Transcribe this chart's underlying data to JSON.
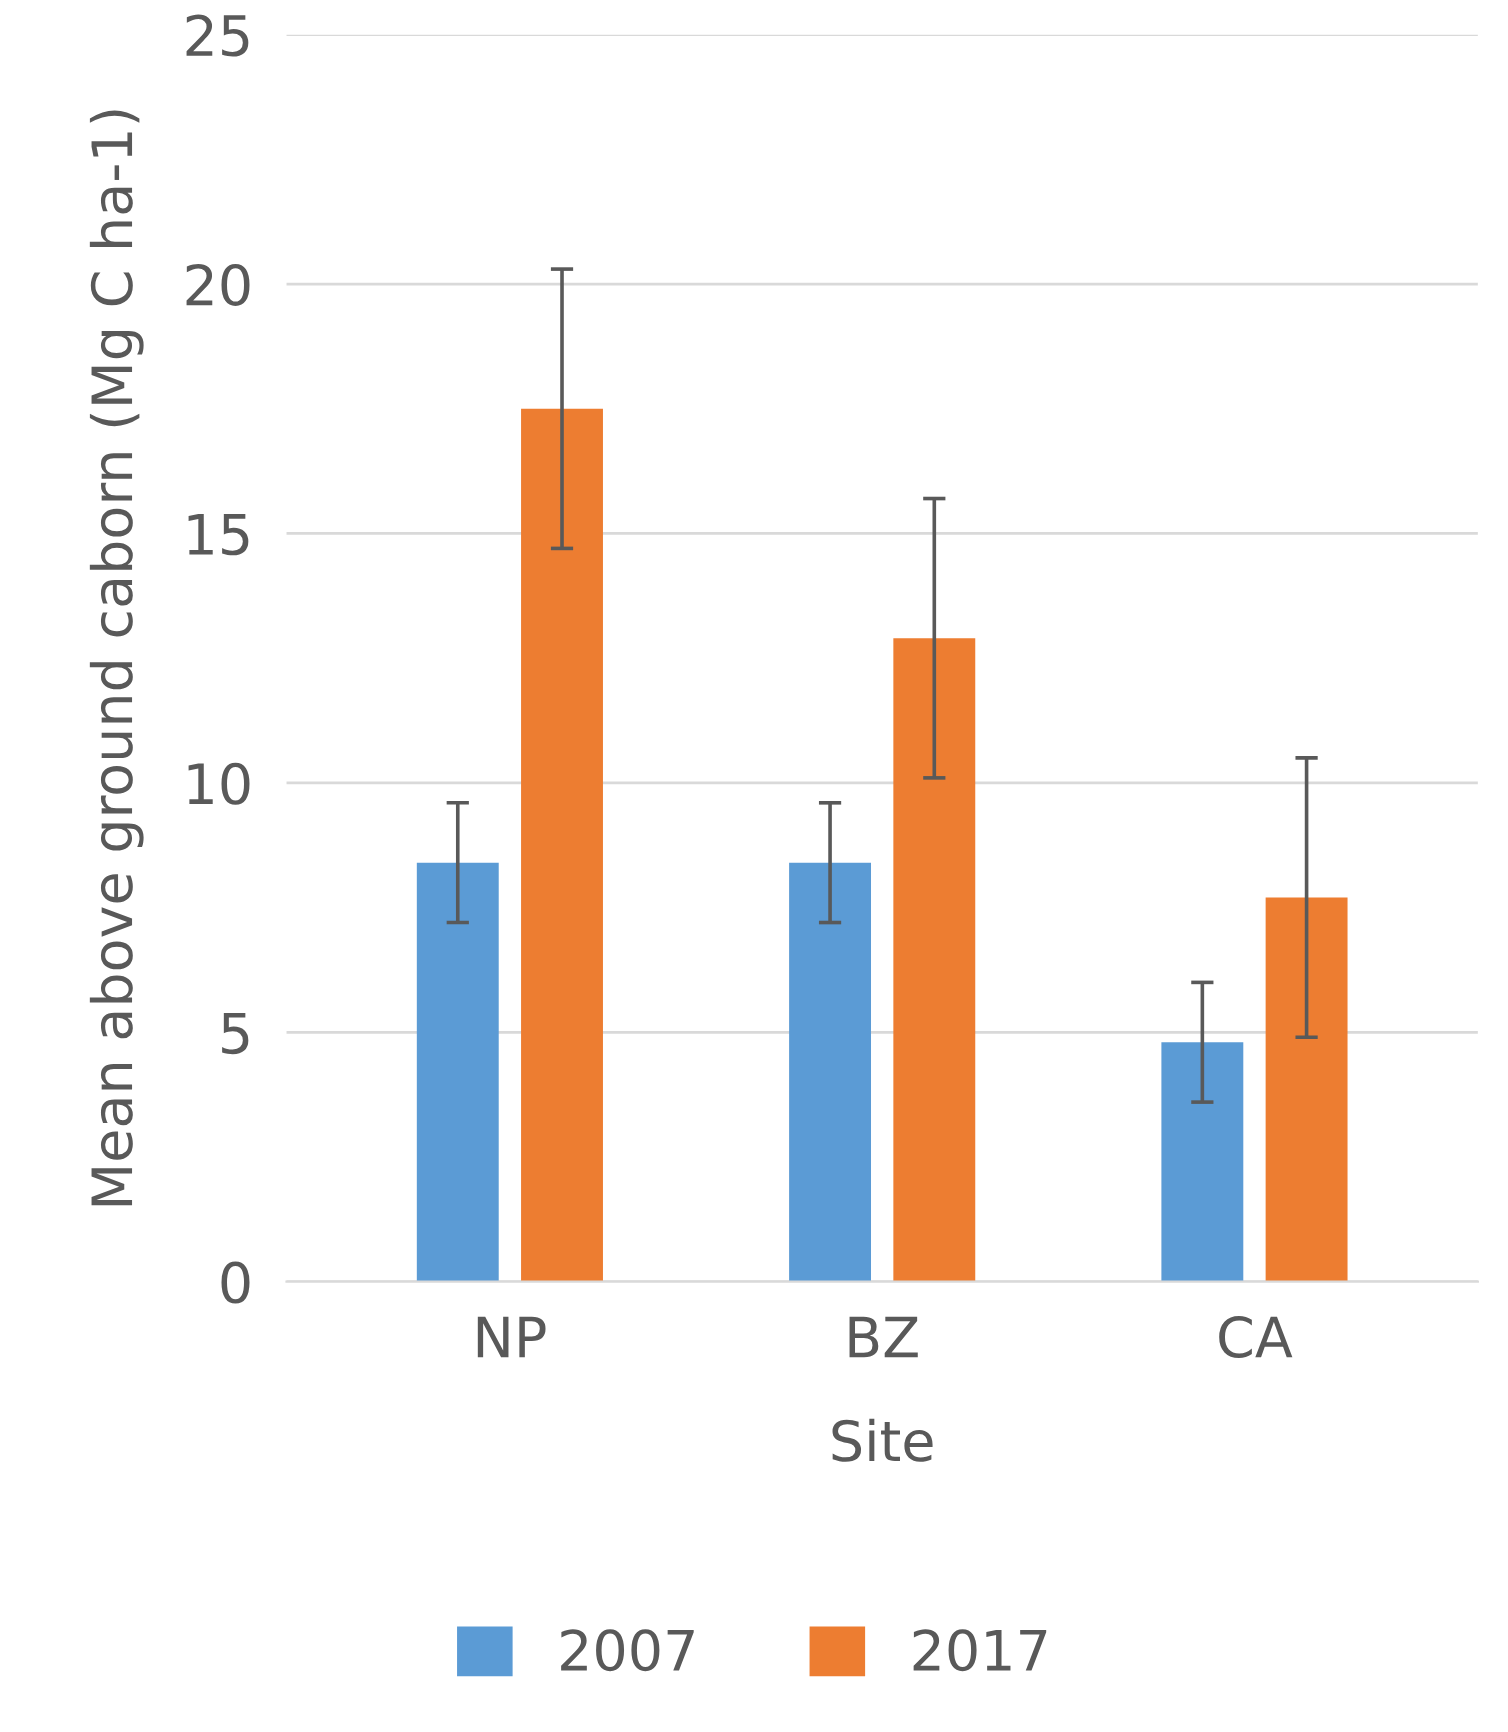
{
  "chart_data": {
    "type": "bar",
    "xlabel": "Site",
    "ylabel": "Mean above ground caborn (Mg C ha-1)",
    "categories": [
      "NP",
      "BZ",
      "CA"
    ],
    "series": [
      {
        "name": "2007",
        "color": "#5b9bd5",
        "values": [
          8.4,
          8.4,
          4.8
        ],
        "errors": [
          1.2,
          1.2,
          1.2
        ]
      },
      {
        "name": "2017",
        "color": "#ed7d31",
        "values": [
          17.5,
          12.9,
          7.7
        ],
        "errors": [
          2.8,
          2.8,
          2.8
        ]
      }
    ],
    "ylim": [
      0,
      25
    ],
    "yticks": [
      0,
      5,
      10,
      15,
      20,
      25
    ],
    "grid": "y",
    "legend": "bottom"
  }
}
